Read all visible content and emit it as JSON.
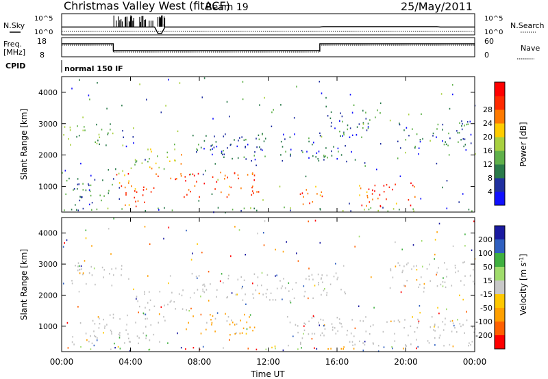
{
  "header": {
    "title": "Christmas Valley West (fitACF)",
    "beam": "Beam 19",
    "date": "25/May/2011"
  },
  "top_panels": {
    "nsky_label": "N.Sky",
    "nsearch_label": "N.Search",
    "count_ticks": [
      "10^5",
      "10^0"
    ],
    "freq_label_line1": "Freq.",
    "freq_label_line2": "[MHz]",
    "freq_ticks": [
      "18",
      "8"
    ],
    "nave_label": "Nave",
    "nave_ticks": [
      "60",
      "0"
    ],
    "cpid_label": "CPID",
    "cpid_value": "normal 150 IF"
  },
  "colors": {
    "power": [
      "#1010ff",
      "#2030a0",
      "#2a7a4a",
      "#5fb04a",
      "#a8d040",
      "#ffcc00",
      "#ff7a00",
      "#ff2a00",
      "#ff0000"
    ],
    "velocity": [
      "#ff0000",
      "#ff6000",
      "#ffa000",
      "#ffc800",
      "#c8c8c8",
      "#a0dc6c",
      "#40b040",
      "#3060c0",
      "#1a1aa0"
    ],
    "ground_scatter": "#c0c0c0"
  },
  "chart_data": [
    {
      "type": "heatmap",
      "name": "power-panel",
      "ylabel": "Slant Range [km]",
      "y_ticks": [
        1000,
        2000,
        3000,
        4000
      ],
      "ylim": [
        180,
        4500
      ],
      "xlim_hours": [
        0,
        24
      ],
      "colorbar_label": "Power [dB]",
      "colorbar_ticks": [
        4,
        8,
        12,
        16,
        20,
        24,
        28
      ],
      "colorbar_range": [
        0,
        32
      ],
      "echo_regions": [
        {
          "t0": 0.0,
          "t1": 3.0,
          "r0": 2300,
          "r1": 3050,
          "p": 12
        },
        {
          "t0": 0.2,
          "t1": 3.0,
          "r0": 400,
          "r1": 1300,
          "p": 8
        },
        {
          "t0": 0.0,
          "t1": 24.0,
          "r0": 200,
          "r1": 330,
          "p": 10
        },
        {
          "t0": 3.0,
          "t1": 5.8,
          "r0": 700,
          "r1": 1400,
          "p": 26
        },
        {
          "t0": 3.3,
          "t1": 4.8,
          "r0": 250,
          "r1": 650,
          "p": 24
        },
        {
          "t0": 4.0,
          "t1": 7.0,
          "r0": 1500,
          "r1": 2200,
          "p": 18
        },
        {
          "t0": 6.0,
          "t1": 11.5,
          "r0": 650,
          "r1": 1450,
          "p": 27
        },
        {
          "t0": 7.5,
          "t1": 16.5,
          "r0": 1800,
          "r1": 2700,
          "p": 6
        },
        {
          "t0": 13.5,
          "t1": 15.5,
          "r0": 400,
          "r1": 1000,
          "p": 26
        },
        {
          "t0": 16.5,
          "t1": 20.5,
          "r0": 350,
          "r1": 1100,
          "p": 27
        },
        {
          "t0": 19.5,
          "t1": 24.0,
          "r0": 2200,
          "r1": 3100,
          "p": 6
        },
        {
          "t0": 15.5,
          "t1": 18.5,
          "r0": 2500,
          "r1": 3500,
          "p": 6
        }
      ]
    },
    {
      "type": "heatmap",
      "name": "velocity-panel",
      "ylabel": "Slant Range [km]",
      "y_ticks": [
        1000,
        2000,
        3000,
        4000
      ],
      "ylim": [
        180,
        4500
      ],
      "xlim_hours": [
        0,
        24
      ],
      "xlabel": "Time UT",
      "x_tick_labels": [
        "00:00",
        "04:00",
        "08:00",
        "12:00",
        "16:00",
        "20:00",
        "00:00"
      ],
      "colorbar_label": "Velocity [m s-1]",
      "colorbar_ticks": [
        200,
        100,
        50,
        15,
        -15,
        -50,
        -100,
        -200
      ],
      "echo_regions": [
        {
          "t0": 0.0,
          "t1": 3.5,
          "r0": 2300,
          "r1": 3050,
          "v": 0,
          "gs": true
        },
        {
          "t0": 0.5,
          "t1": 6.0,
          "r0": 400,
          "r1": 1400,
          "v": 0,
          "gs": true
        },
        {
          "t0": 4.0,
          "t1": 7.5,
          "r0": 1500,
          "r1": 2200,
          "v": 0,
          "gs": true
        },
        {
          "t0": 7.0,
          "t1": 11.5,
          "r0": 700,
          "r1": 1400,
          "v": -70,
          "gs": false
        },
        {
          "t0": 7.5,
          "t1": 16.5,
          "r0": 1800,
          "r1": 2700,
          "v": 0,
          "gs": true
        },
        {
          "t0": 13.0,
          "t1": 24.0,
          "r0": 350,
          "r1": 1300,
          "v": 0,
          "gs": true
        },
        {
          "t0": 19.0,
          "t1": 24.0,
          "r0": 2200,
          "r1": 3100,
          "v": 0,
          "gs": true
        },
        {
          "t0": 0.0,
          "t1": 24.0,
          "r0": 200,
          "r1": 330,
          "v": -30,
          "gs": false
        }
      ]
    }
  ]
}
